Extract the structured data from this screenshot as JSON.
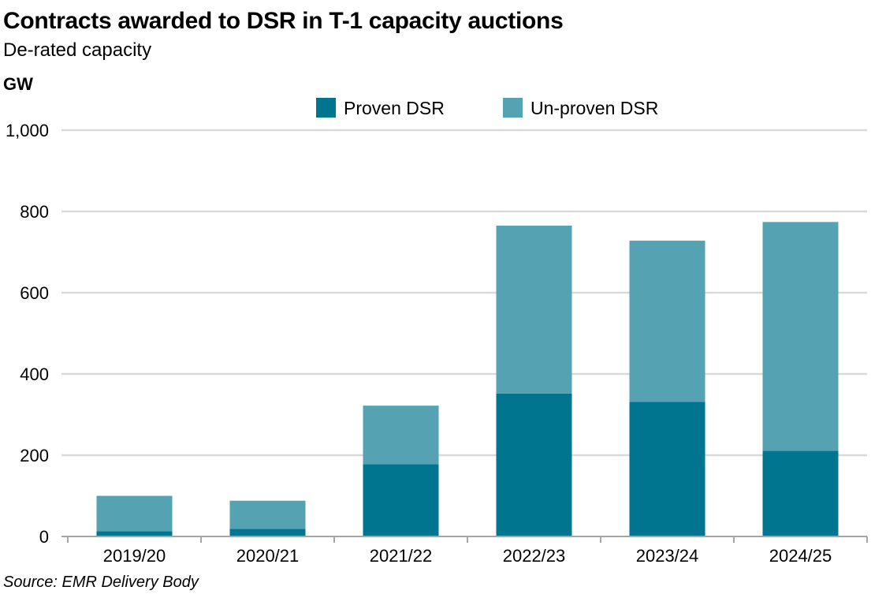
{
  "header": {
    "title": "Contracts awarded to DSR in T-1 capacity auctions",
    "subtitle": "De-rated capacity"
  },
  "footer": {
    "source": "Source: EMR Delivery Body"
  },
  "colors": {
    "proven": "#00758F",
    "unproven": "#54A2B2",
    "grid": "#d9d9d9",
    "axis": "#a6a6a6"
  },
  "chart_data": {
    "type": "bar",
    "stacked": true,
    "title": "Contracts awarded to DSR in T-1 capacity auctions",
    "subtitle": "De-rated capacity",
    "unit_label": "GW",
    "categories": [
      "2019/20",
      "2020/21",
      "2021/22",
      "2022/23",
      "2023/24",
      "2024/25"
    ],
    "series": [
      {
        "name": "Proven DSR",
        "values": [
          13,
          19,
          178,
          352,
          331,
          211
        ]
      },
      {
        "name": "Un-proven DSR",
        "values": [
          87,
          69,
          144,
          413,
          397,
          563
        ]
      }
    ],
    "ylim": [
      0,
      1000
    ],
    "yticks": [
      0,
      200,
      400,
      600,
      800,
      1000
    ],
    "ytick_labels": [
      "0",
      "200",
      "400",
      "600",
      "800",
      "1,000"
    ],
    "grid": true,
    "legend_position": "top-center"
  }
}
